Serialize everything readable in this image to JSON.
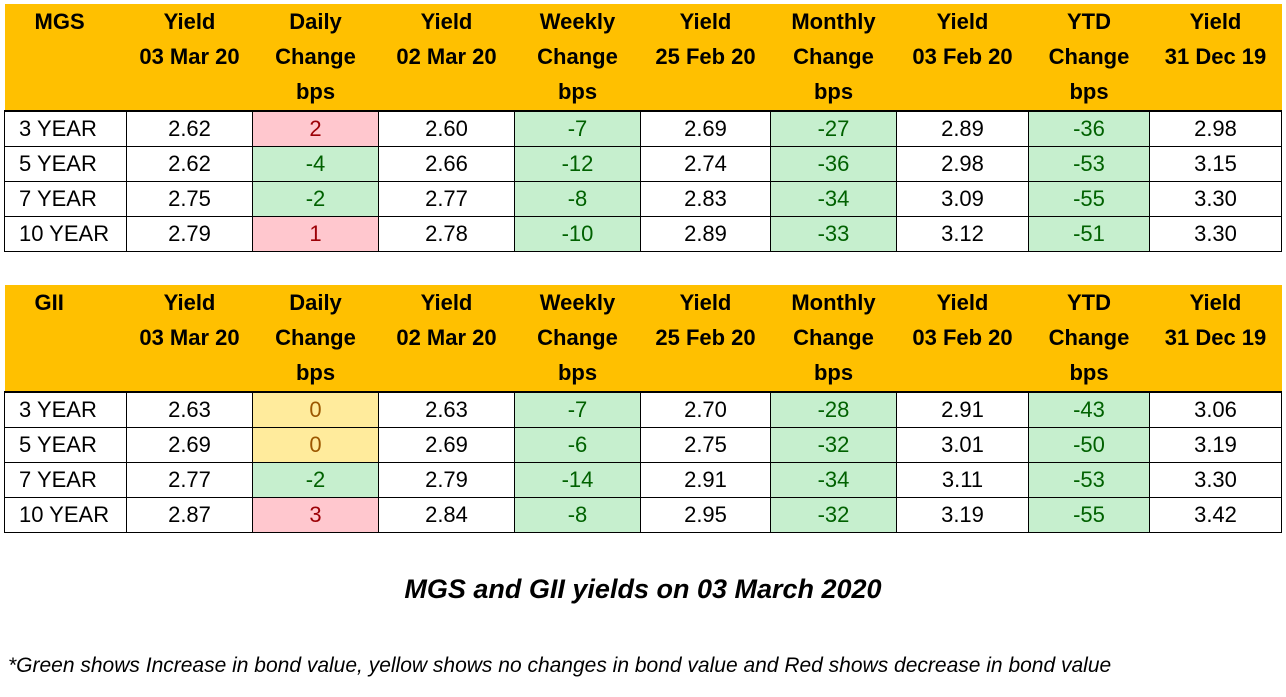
{
  "tables": [
    {
      "id": "mgs",
      "headers": [
        [
          "MGS"
        ],
        [
          "Yield",
          "03 Mar 20"
        ],
        [
          "Daily",
          "Change",
          "bps"
        ],
        [
          "Yield",
          "02 Mar 20"
        ],
        [
          "Weekly",
          "Change",
          "bps"
        ],
        [
          "Yield",
          "25 Feb 20"
        ],
        [
          "Monthly",
          "Change",
          "bps"
        ],
        [
          "Yield",
          "03 Feb 20"
        ],
        [
          "YTD",
          "Change",
          "bps"
        ],
        [
          "Yield",
          "31 Dec 19"
        ]
      ],
      "rows": [
        [
          "3 YEAR",
          "2.62",
          "2",
          "2.60",
          "-7",
          "2.69",
          "-27",
          "2.89",
          "-36",
          "2.98"
        ],
        [
          "5 YEAR",
          "2.62",
          "-4",
          "2.66",
          "-12",
          "2.74",
          "-36",
          "2.98",
          "-53",
          "3.15"
        ],
        [
          "7 YEAR",
          "2.75",
          "-2",
          "2.77",
          "-8",
          "2.83",
          "-34",
          "3.09",
          "-55",
          "3.30"
        ],
        [
          "10 YEAR",
          "2.79",
          "1",
          "2.78",
          "-10",
          "2.89",
          "-33",
          "3.12",
          "-51",
          "3.30"
        ]
      ]
    },
    {
      "id": "gii",
      "headers": [
        [
          "GII"
        ],
        [
          "Yield",
          "03 Mar 20"
        ],
        [
          "Daily",
          "Change",
          "bps"
        ],
        [
          "Yield",
          "02 Mar 20"
        ],
        [
          "Weekly",
          "Change",
          "bps"
        ],
        [
          "Yield",
          "25 Feb 20"
        ],
        [
          "Monthly",
          "Change",
          "bps"
        ],
        [
          "Yield",
          "03 Feb 20"
        ],
        [
          "YTD",
          "Change",
          "bps"
        ],
        [
          "Yield",
          "31 Dec 19"
        ]
      ],
      "rows": [
        [
          "3 YEAR",
          "2.63",
          "0",
          "2.63",
          "-7",
          "2.70",
          "-28",
          "2.91",
          "-43",
          "3.06"
        ],
        [
          "5 YEAR",
          "2.69",
          "0",
          "2.69",
          "-6",
          "2.75",
          "-32",
          "3.01",
          "-50",
          "3.19"
        ],
        [
          "7 YEAR",
          "2.77",
          "-2",
          "2.79",
          "-14",
          "2.91",
          "-34",
          "3.11",
          "-53",
          "3.30"
        ],
        [
          "10 YEAR",
          "2.87",
          "3",
          "2.84",
          "-8",
          "2.95",
          "-32",
          "3.19",
          "-55",
          "3.42"
        ]
      ]
    }
  ],
  "caption": "MGS and GII yields on 03 March 2020",
  "footnote": "*Green shows Increase in bond value, yellow shows no changes in bond value and Red shows decrease in bond value",
  "colors": {
    "header_bg": "#ffc000",
    "increase_bg": "#c6efce",
    "decrease_bg": "#ffc7ce",
    "no_change_bg": "#ffeb9c"
  }
}
